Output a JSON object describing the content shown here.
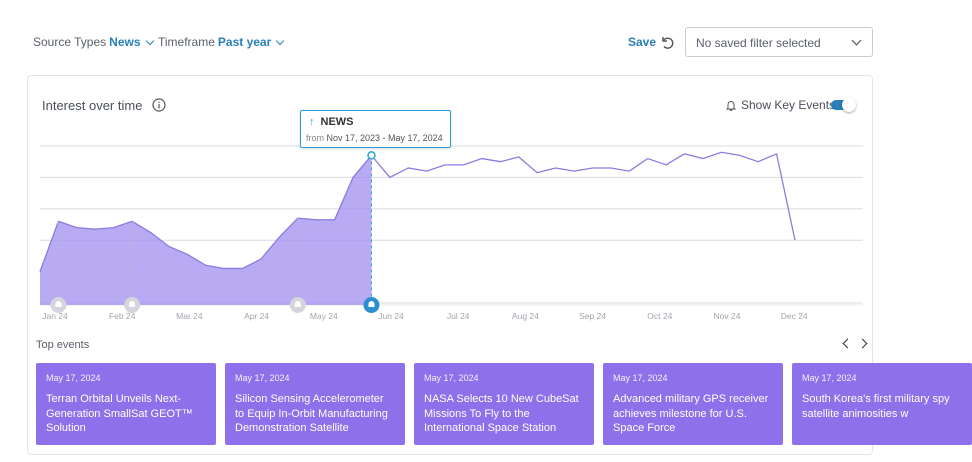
{
  "filters": {
    "source_label": "Source Types",
    "source_value": "News",
    "timeframe_label": "Timeframe",
    "timeframe_value": "Past year",
    "save_label": "Save",
    "saved_filter_placeholder": "No saved filter selected"
  },
  "card": {
    "title": "Interest over time",
    "key_events_label": "Show Key Events",
    "key_events_on": true
  },
  "tooltip": {
    "series": "NEWS",
    "from_label": "from",
    "range": "Nov 17, 2023 - May 17, 2024"
  },
  "colors": {
    "accent": "#2a7fb8",
    "line": "#8e7be0",
    "area": "#a18ef0",
    "event_card": "#8d70ea",
    "grid": "#d8dbe0"
  },
  "chart_data": {
    "type": "line",
    "x_labels": [
      "Jan 24",
      "Feb 24",
      "Mar 24",
      "Apr 24",
      "May 24",
      "Jun 24",
      "Jul 24",
      "Aug 24",
      "Sep 24",
      "Oct 24",
      "Nov 24",
      "Dec 24"
    ],
    "values": [
      20,
      52,
      48,
      47,
      48,
      52,
      45,
      36,
      31,
      24,
      22,
      22,
      28,
      42,
      54,
      53,
      53,
      80,
      94,
      80,
      86,
      84,
      88,
      88,
      92,
      90,
      93,
      83,
      86,
      84,
      86,
      86,
      84,
      92,
      88,
      95,
      92,
      96,
      94,
      90,
      95,
      40
    ],
    "highlight_index": 18,
    "ylim": [
      0,
      100
    ],
    "grid_lines": 5,
    "event_marker_indices": [
      1,
      5,
      14,
      18
    ],
    "highlight_marker_index": 18
  },
  "events": {
    "heading": "Top events",
    "items": [
      {
        "date": "May 17, 2024",
        "headline": "Terran Orbital Unveils Next-Generation SmallSat GEOT™ Solution"
      },
      {
        "date": "May 17, 2024",
        "headline": "Silicon Sensing Accelerometer to Equip In-Orbit Manufacturing Demonstration Satellite"
      },
      {
        "date": "May 17, 2024",
        "headline": "NASA Selects 10 New CubeSat Missions To Fly to the International Space Station"
      },
      {
        "date": "May 17, 2024",
        "headline": "Advanced military GPS receiver achieves milestone for U.S. Space Force"
      },
      {
        "date": "May 17, 2024",
        "headline": "South Korea's first military spy satellite animosities w"
      }
    ]
  }
}
